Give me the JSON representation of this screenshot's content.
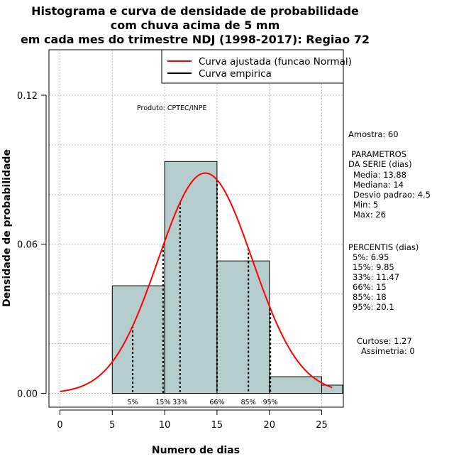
{
  "chart_data": {
    "type": "bar",
    "title_lines": [
      "Histograma e curva de densidade de probabilidade",
      "com chuva acima de 5 mm",
      "em cada mes do trimestre NDJ (1998-2017): Regiao 72"
    ],
    "xlabel": "Numero de dias",
    "ylabel": "Densidade de probabilidade",
    "xlim": [
      -1,
      27
    ],
    "ylim": [
      -0.005,
      0.135
    ],
    "x_ticks": [
      0,
      5,
      10,
      15,
      20,
      25
    ],
    "y_ticks": [
      0.0,
      0.06,
      0.12
    ],
    "y_tick_labels": [
      "0.00",
      "0.06",
      "0.12"
    ],
    "grid": true,
    "bins": [
      {
        "start": 5,
        "end": 10,
        "density": 0.0433
      },
      {
        "start": 10,
        "end": 15,
        "density": 0.0933
      },
      {
        "start": 15,
        "end": 20,
        "density": 0.0533
      },
      {
        "start": 20,
        "end": 25,
        "density": 0.0067
      },
      {
        "start": 25,
        "end": 27,
        "density": 0.0033
      }
    ],
    "normal_fit": {
      "mean": 13.88,
      "sd": 4.5,
      "x_from": 0,
      "x_to": 26
    },
    "percentile_lines": [
      {
        "label": "5%",
        "x": 6.95
      },
      {
        "label": "15%",
        "x": 9.85
      },
      {
        "label": "33%",
        "x": 11.47
      },
      {
        "label": "66%",
        "x": 15
      },
      {
        "label": "85%",
        "x": 18
      },
      {
        "label": "95%",
        "x": 20.1
      }
    ],
    "legend": [
      {
        "label": "Curva ajustada (funcao Normal)",
        "color": "#ff0000"
      },
      {
        "label": "Curva empirica",
        "color": "#000000"
      }
    ],
    "bar_color": "#b6cdcd",
    "credit": "Produto: CPTEC/INPE",
    "stats": {
      "amostra": "Amostra: 60",
      "param_header": [
        "PARAMETROS",
        "DA SERIE (dias)"
      ],
      "params": [
        "Media: 13.88",
        "Mediana: 14",
        "Desvio padrao: 4.5",
        "Min: 5",
        "Max: 26"
      ],
      "percentis_header": "PERCENTIS (dias)",
      "percentis": [
        "5%: 6.95",
        "15%: 9.85",
        "33%: 11.47",
        "66%: 15",
        "85%: 18",
        "95%: 20.1"
      ],
      "curtose": "Curtose: 1.27",
      "assimetria": "Assimetria: 0"
    }
  }
}
